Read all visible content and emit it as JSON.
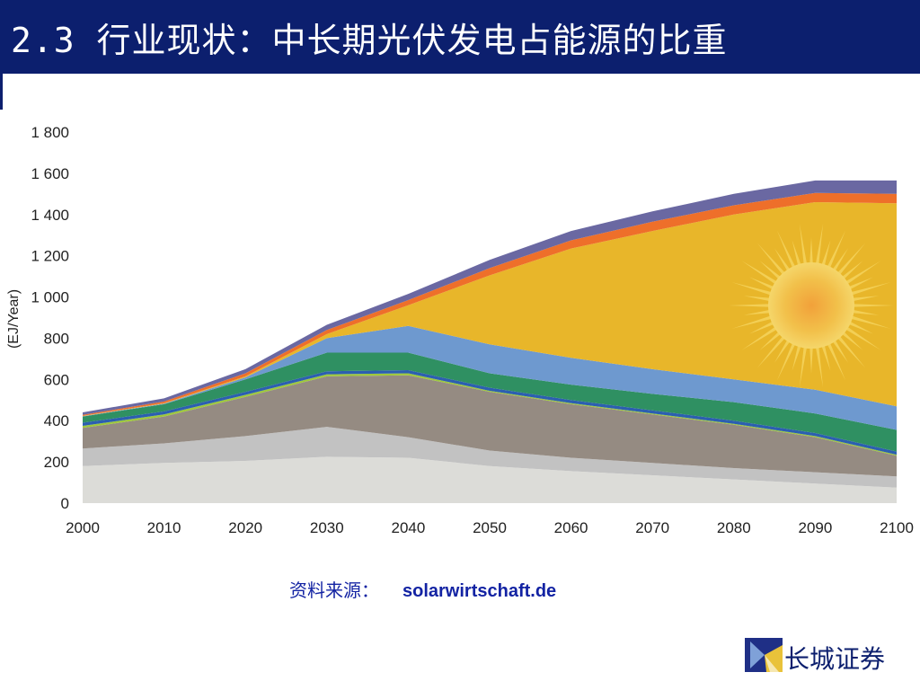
{
  "header": {
    "title": "2.3 行业现状：中长期光伏发电占能源的比重"
  },
  "source": {
    "label": "资料来源：",
    "value": "solarwirtschaft.de"
  },
  "logo": {
    "text": "长城证券"
  },
  "chart_data": {
    "type": "area",
    "title": "",
    "xlabel": "",
    "ylabel": "(EJ/Year)",
    "x": [
      2000,
      2010,
      2020,
      2030,
      2040,
      2050,
      2060,
      2070,
      2080,
      2090,
      2100
    ],
    "xlim": [
      2000,
      2100
    ],
    "ylim": [
      0,
      1800
    ],
    "x_ticks": [
      "2000",
      "2010",
      "2020",
      "2030",
      "2040",
      "2050",
      "2060",
      "2070",
      "2080",
      "2090",
      "2100"
    ],
    "y_ticks": [
      "0",
      "200",
      "400",
      "600",
      "800",
      "1 000",
      "1 200",
      "1 400",
      "1 600",
      "1 800"
    ],
    "y_tick_values": [
      0,
      200,
      400,
      600,
      800,
      1000,
      1200,
      1400,
      1600,
      1800
    ],
    "grid": false,
    "legend": "none",
    "stacked": true,
    "series": [
      {
        "color": "#dcdcd8",
        "values": [
          180,
          195,
          205,
          225,
          220,
          180,
          155,
          135,
          115,
          95,
          75
        ]
      },
      {
        "color": "#c2c2c2",
        "values": [
          85,
          95,
          120,
          145,
          100,
          75,
          65,
          60,
          55,
          55,
          55
        ]
      },
      {
        "color": "#958b82",
        "values": [
          100,
          130,
          190,
          245,
          300,
          285,
          260,
          235,
          210,
          170,
          100
        ]
      },
      {
        "color": "#9ec83c",
        "values": [
          10,
          10,
          10,
          10,
          10,
          5,
          5,
          5,
          5,
          5,
          5
        ]
      },
      {
        "color": "#2c5fb0",
        "values": [
          15,
          15,
          15,
          15,
          15,
          15,
          15,
          15,
          15,
          15,
          15
        ]
      },
      {
        "color": "#2f9062",
        "values": [
          30,
          35,
          60,
          90,
          85,
          70,
          75,
          80,
          90,
          95,
          105
        ]
      },
      {
        "color": "#6e99cf",
        "values": [
          2,
          3,
          10,
          70,
          130,
          140,
          130,
          120,
          110,
          115,
          115
        ]
      },
      {
        "color": "#e8b62a",
        "values": [
          1,
          2,
          5,
          20,
          100,
          335,
          530,
          670,
          800,
          910,
          985
        ]
      },
      {
        "color": "#ee6f2a",
        "values": [
          5,
          8,
          15,
          20,
          25,
          35,
          40,
          45,
          45,
          45,
          45
        ]
      },
      {
        "color": "#6a68a2",
        "values": [
          12,
          15,
          20,
          25,
          30,
          40,
          45,
          50,
          55,
          60,
          65
        ]
      }
    ]
  }
}
